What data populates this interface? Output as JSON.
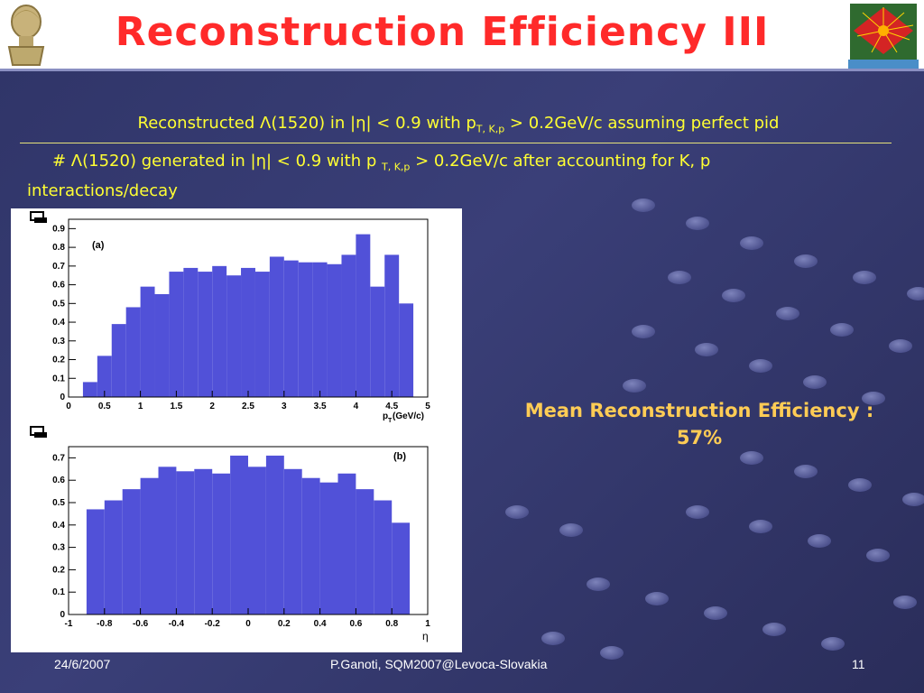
{
  "slide": {
    "title": "Reconstruction Efficiency III",
    "numerator": {
      "prefix": "Reconstructed Λ(1520) in |η| < 0.9 with p",
      "sub": "T, K,p",
      "suffix": " > 0.2GeV/c assuming perfect pid"
    },
    "denominator": {
      "prefix": "# Λ(1520) generated in |η| < 0.9 with p ",
      "sub": "T, K,p",
      "suffix": " > 0.2GeV/c after accounting for K, p",
      "line2": "interactions/decay"
    },
    "mean_label": "Mean Reconstruction Efficiency :",
    "mean_value": "57%"
  },
  "footer": {
    "date": "24/6/2007",
    "author": "P.Ganoti, SQM2007@Levoca-Slovakia",
    "page": "11"
  },
  "colors": {
    "title": "#ff2a2a",
    "text": "#ffff33",
    "mean": "#ffcc55",
    "bars": "#5151d8"
  },
  "chart_data": [
    {
      "type": "bar",
      "panel_label": "(a)",
      "xlabel": "p",
      "xlabel_sub": "T",
      "xlabel_unit": "(GeV/c)",
      "xlim": [
        0,
        5
      ],
      "ylim": [
        0,
        0.95
      ],
      "bin_width": 0.2,
      "x_start": 0.2,
      "xticks": [
        "0",
        "0.5",
        "1",
        "1.5",
        "2",
        "2.5",
        "3",
        "3.5",
        "4",
        "4.5",
        "5"
      ],
      "yticks": [
        "0",
        "0.1",
        "0.2",
        "0.3",
        "0.4",
        "0.5",
        "0.6",
        "0.7",
        "0.8",
        "0.9"
      ],
      "values": [
        0.08,
        0.22,
        0.39,
        0.48,
        0.59,
        0.55,
        0.67,
        0.69,
        0.67,
        0.7,
        0.65,
        0.69,
        0.67,
        0.75,
        0.73,
        0.72,
        0.72,
        0.71,
        0.76,
        0.87,
        0.59,
        0.76,
        0.5
      ]
    },
    {
      "type": "bar",
      "panel_label": "(b)",
      "xlabel": "η",
      "xlim": [
        -1,
        1
      ],
      "ylim": [
        0,
        0.75
      ],
      "bin_width": 0.1,
      "x_start": -0.9,
      "xticks": [
        "-1",
        "-0.8",
        "-0.6",
        "-0.4",
        "-0.2",
        "0",
        "0.2",
        "0.4",
        "0.6",
        "0.8",
        "1"
      ],
      "yticks": [
        "0",
        "0.1",
        "0.2",
        "0.3",
        "0.4",
        "0.5",
        "0.6",
        "0.7"
      ],
      "values": [
        0.47,
        0.51,
        0.56,
        0.61,
        0.66,
        0.64,
        0.65,
        0.63,
        0.71,
        0.66,
        0.71,
        0.65,
        0.61,
        0.59,
        0.63,
        0.56,
        0.51,
        0.41
      ]
    }
  ]
}
